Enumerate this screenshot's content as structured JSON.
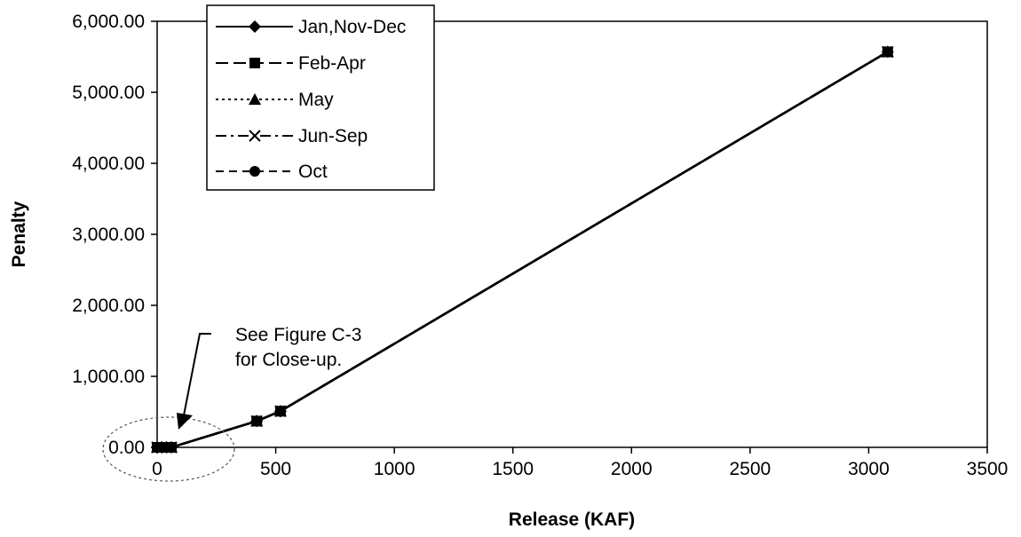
{
  "chart_data": {
    "type": "line",
    "title": "",
    "xlabel": "Release (KAF)",
    "ylabel": "Penalty",
    "xlim": [
      0,
      3500
    ],
    "ylim": [
      0,
      6000
    ],
    "x_ticks": [
      0,
      500,
      1000,
      1500,
      2000,
      2500,
      3000,
      3500
    ],
    "x_tick_labels": [
      "0",
      "500",
      "1000",
      "1500",
      "2000",
      "2500",
      "3000",
      "3500"
    ],
    "y_ticks": [
      0,
      1000,
      2000,
      3000,
      4000,
      5000,
      6000
    ],
    "y_tick_labels": [
      "0.00",
      "1,000.00",
      "2,000.00",
      "3,000.00",
      "4,000.00",
      "5,000.00",
      "6,000.00"
    ],
    "grid": false,
    "legend_position": "top-left",
    "series": [
      {
        "name": "Jan,Nov-Dec",
        "marker": "diamond",
        "dash": "solid",
        "points": [
          [
            0,
            0
          ],
          [
            20,
            0
          ],
          [
            40,
            0
          ],
          [
            60,
            0
          ],
          [
            420,
            370
          ],
          [
            520,
            510
          ],
          [
            3080,
            5570
          ]
        ]
      },
      {
        "name": "Feb-Apr",
        "marker": "square",
        "dash": "long-dash",
        "points": [
          [
            0,
            0
          ],
          [
            20,
            0
          ],
          [
            40,
            0
          ],
          [
            60,
            0
          ],
          [
            420,
            370
          ],
          [
            520,
            510
          ],
          [
            3080,
            5570
          ]
        ]
      },
      {
        "name": "May",
        "marker": "triangle",
        "dash": "dotted",
        "points": [
          [
            0,
            0
          ],
          [
            20,
            0
          ],
          [
            40,
            0
          ],
          [
            60,
            0
          ],
          [
            420,
            370
          ],
          [
            520,
            510
          ],
          [
            3080,
            5570
          ]
        ]
      },
      {
        "name": "Jun-Sep",
        "marker": "x",
        "dash": "dash-dot",
        "points": [
          [
            0,
            0
          ],
          [
            20,
            0
          ],
          [
            40,
            0
          ],
          [
            60,
            0
          ],
          [
            420,
            370
          ],
          [
            520,
            510
          ],
          [
            3080,
            5570
          ]
        ]
      },
      {
        "name": "Oct",
        "marker": "circle",
        "dash": "dash",
        "points": [
          [
            0,
            0
          ],
          [
            20,
            0
          ],
          [
            40,
            0
          ],
          [
            60,
            0
          ],
          [
            420,
            370
          ],
          [
            520,
            510
          ],
          [
            3080,
            5570
          ]
        ]
      }
    ],
    "annotations": [
      {
        "text_lines": [
          "See Figure C-3",
          "for Close-up."
        ],
        "points_to": [
          100,
          0
        ]
      }
    ]
  }
}
